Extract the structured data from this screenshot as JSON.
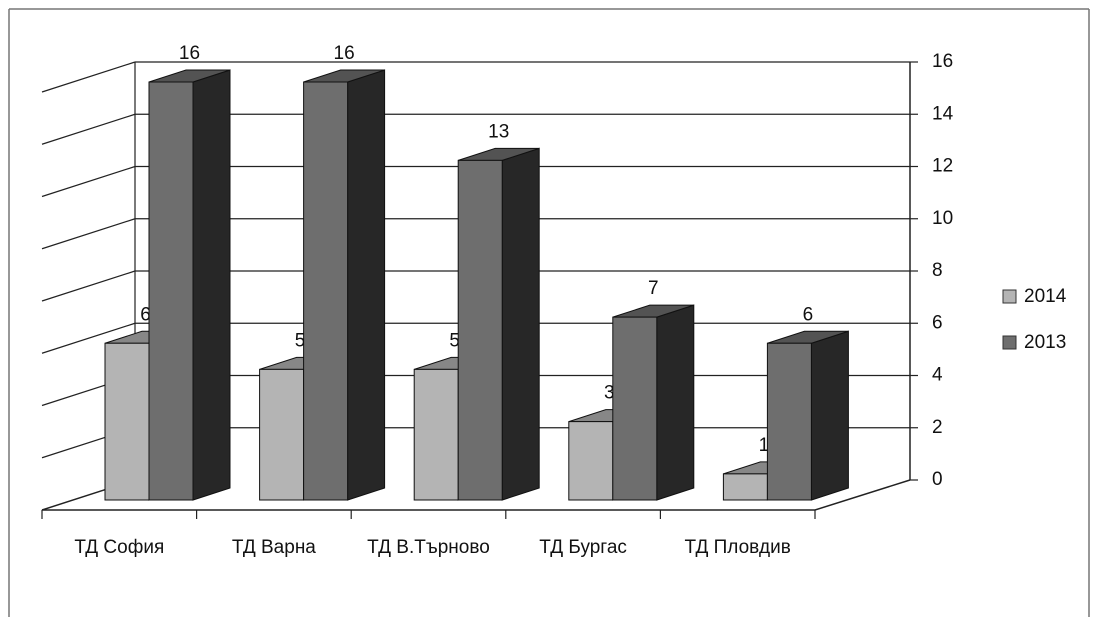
{
  "chart_data": {
    "type": "bar3d",
    "categories": [
      "ТД София",
      "ТД Варна",
      "ТД В.Търново",
      "ТД Бургас",
      "ТД Пловдив"
    ],
    "series": [
      {
        "name": "2014",
        "color": "#b4b4b4",
        "values": [
          6,
          5,
          5,
          3,
          1
        ]
      },
      {
        "name": "2013",
        "color": "#6e6e6e",
        "values": [
          16,
          16,
          13,
          7,
          6
        ]
      }
    ],
    "ylim": [
      0,
      16
    ],
    "yticks": [
      0,
      2,
      4,
      6,
      8,
      10,
      12,
      14,
      16
    ],
    "grid": true,
    "legend": "right"
  }
}
